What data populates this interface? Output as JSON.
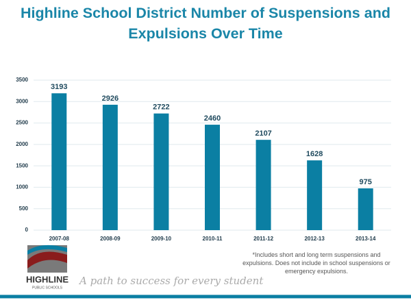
{
  "chart_data": {
    "type": "bar",
    "title": "Highline School District Number of Suspensions and Expulsions Over Time",
    "categories": [
      "2007-08",
      "2008-09",
      "2009-10",
      "2010-11",
      "2011-12",
      "2012-13",
      "2013-14"
    ],
    "values": [
      3193,
      2926,
      2722,
      2460,
      2107,
      1628,
      975
    ],
    "color": "#0b7fa3",
    "ylim": [
      0,
      3500
    ],
    "yticks": [
      0,
      500,
      1000,
      1500,
      2000,
      2500,
      3000,
      3500
    ],
    "grid": true,
    "footnote": "*Includes short and long term suspensions and expulsions. Does not include in school suspensions or emergency expulsions."
  },
  "branding": {
    "name": "HIGHLINE",
    "subtitle": "PUBLIC SCHOOLS",
    "tagline": "A path to success for every student"
  }
}
